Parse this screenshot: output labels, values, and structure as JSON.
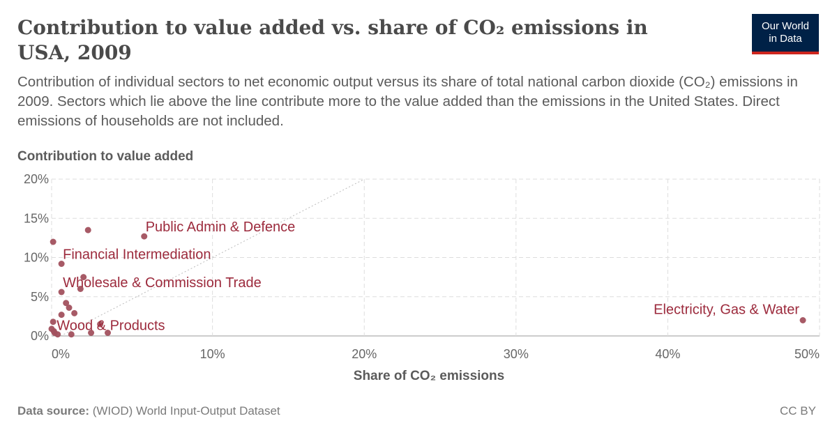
{
  "header": {
    "title": "Contribution to value added vs. share of CO₂ emissions in USA, 2009",
    "subtitle": "Contribution of individual sectors to net economic output versus its share of total national carbon dioxide (CO₂) emissions in 2009. Sectors which lie above the line contribute more to the value added than the emissions in the United States. Direct emissions of households are not included."
  },
  "logo": {
    "line1": "Our World",
    "line2": "in Data",
    "bg_color": "#002147",
    "accent_color": "#ce261e"
  },
  "footer": {
    "source_label": "Data source:",
    "source_text": "(WIOD) World Input-Output Dataset",
    "license": "CC BY"
  },
  "chart_data": {
    "type": "scatter",
    "title": "Contribution to value added vs. share of CO₂ emissions in USA, 2009",
    "xlabel": "Share of CO₂ emissions",
    "ylabel": "Contribution to value added",
    "xlim": [
      -0.6,
      50
    ],
    "ylim": [
      0,
      20
    ],
    "x_ticks": [
      {
        "value": 0,
        "label": "0%"
      },
      {
        "value": 10,
        "label": "10%"
      },
      {
        "value": 20,
        "label": "20%"
      },
      {
        "value": 30,
        "label": "30%"
      },
      {
        "value": 40,
        "label": "40%"
      },
      {
        "value": 50,
        "label": "50%"
      }
    ],
    "y_ticks": [
      {
        "value": 0,
        "label": "0%"
      },
      {
        "value": 5,
        "label": "5%"
      },
      {
        "value": 10,
        "label": "10%"
      },
      {
        "value": 15,
        "label": "15%"
      },
      {
        "value": 20,
        "label": "20%"
      }
    ],
    "grid": true,
    "diagonal_line": true,
    "point_color": "#a2515e",
    "label_color": "#9c2a3c",
    "points": [
      {
        "x": 48.9,
        "y": 2.0,
        "label": "Electricity, Gas & Water"
      },
      {
        "x": 5.5,
        "y": 12.7,
        "label": "Public Admin & Defence"
      },
      {
        "x": 0.05,
        "y": 9.2,
        "label": "Financial Intermediation"
      },
      {
        "x": 0.05,
        "y": 5.6,
        "label": "Wholesale & Commission Trade"
      },
      {
        "x": -0.45,
        "y": 0.6,
        "label": "Wood & Products"
      },
      {
        "x": 1.8,
        "y": 13.5,
        "label": ""
      },
      {
        "x": -0.5,
        "y": 12.0,
        "label": ""
      },
      {
        "x": 1.5,
        "y": 7.5,
        "label": ""
      },
      {
        "x": 1.3,
        "y": 6.0,
        "label": ""
      },
      {
        "x": 0.35,
        "y": 4.2,
        "label": ""
      },
      {
        "x": 0.55,
        "y": 3.6,
        "label": ""
      },
      {
        "x": 0.9,
        "y": 2.9,
        "label": ""
      },
      {
        "x": 0.05,
        "y": 2.7,
        "label": ""
      },
      {
        "x": 2.6,
        "y": 1.5,
        "label": ""
      },
      {
        "x": -0.6,
        "y": 0.9,
        "label": ""
      },
      {
        "x": -0.4,
        "y": 0.4,
        "label": ""
      },
      {
        "x": -0.2,
        "y": 0.2,
        "label": ""
      },
      {
        "x": 0.7,
        "y": 0.2,
        "label": ""
      },
      {
        "x": 2.0,
        "y": 0.4,
        "label": ""
      },
      {
        "x": 3.1,
        "y": 0.4,
        "label": ""
      },
      {
        "x": -0.5,
        "y": 1.8,
        "label": ""
      }
    ]
  }
}
